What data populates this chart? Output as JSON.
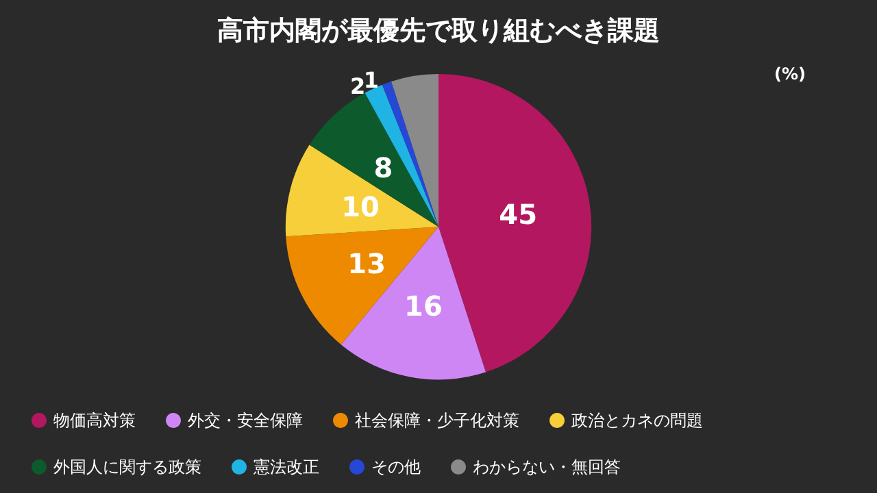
{
  "chart_data": {
    "type": "pie",
    "title": "高市内閣が最優先で取り組むべき課題",
    "categories": [
      "物価高対策",
      "外交・安全保障",
      "社会保障・少子化対策",
      "政治とカネの問題",
      "外国人に関する政策",
      "憲法改正",
      "その他",
      "わからない・無回答"
    ],
    "values": [
      45,
      16,
      13,
      10,
      8,
      2,
      1,
      5
    ],
    "value_labels": [
      "45",
      "16",
      "13",
      "10",
      "8",
      "2",
      "1",
      null
    ],
    "colors": [
      "#b3175f",
      "#cf86f5",
      "#ee8a00",
      "#f7cf3b",
      "#0d5a2c",
      "#1fb4e3",
      "#2747d6",
      "#8a8a8a"
    ],
    "annotations": [
      "(%)"
    ],
    "legend": "bottom"
  }
}
